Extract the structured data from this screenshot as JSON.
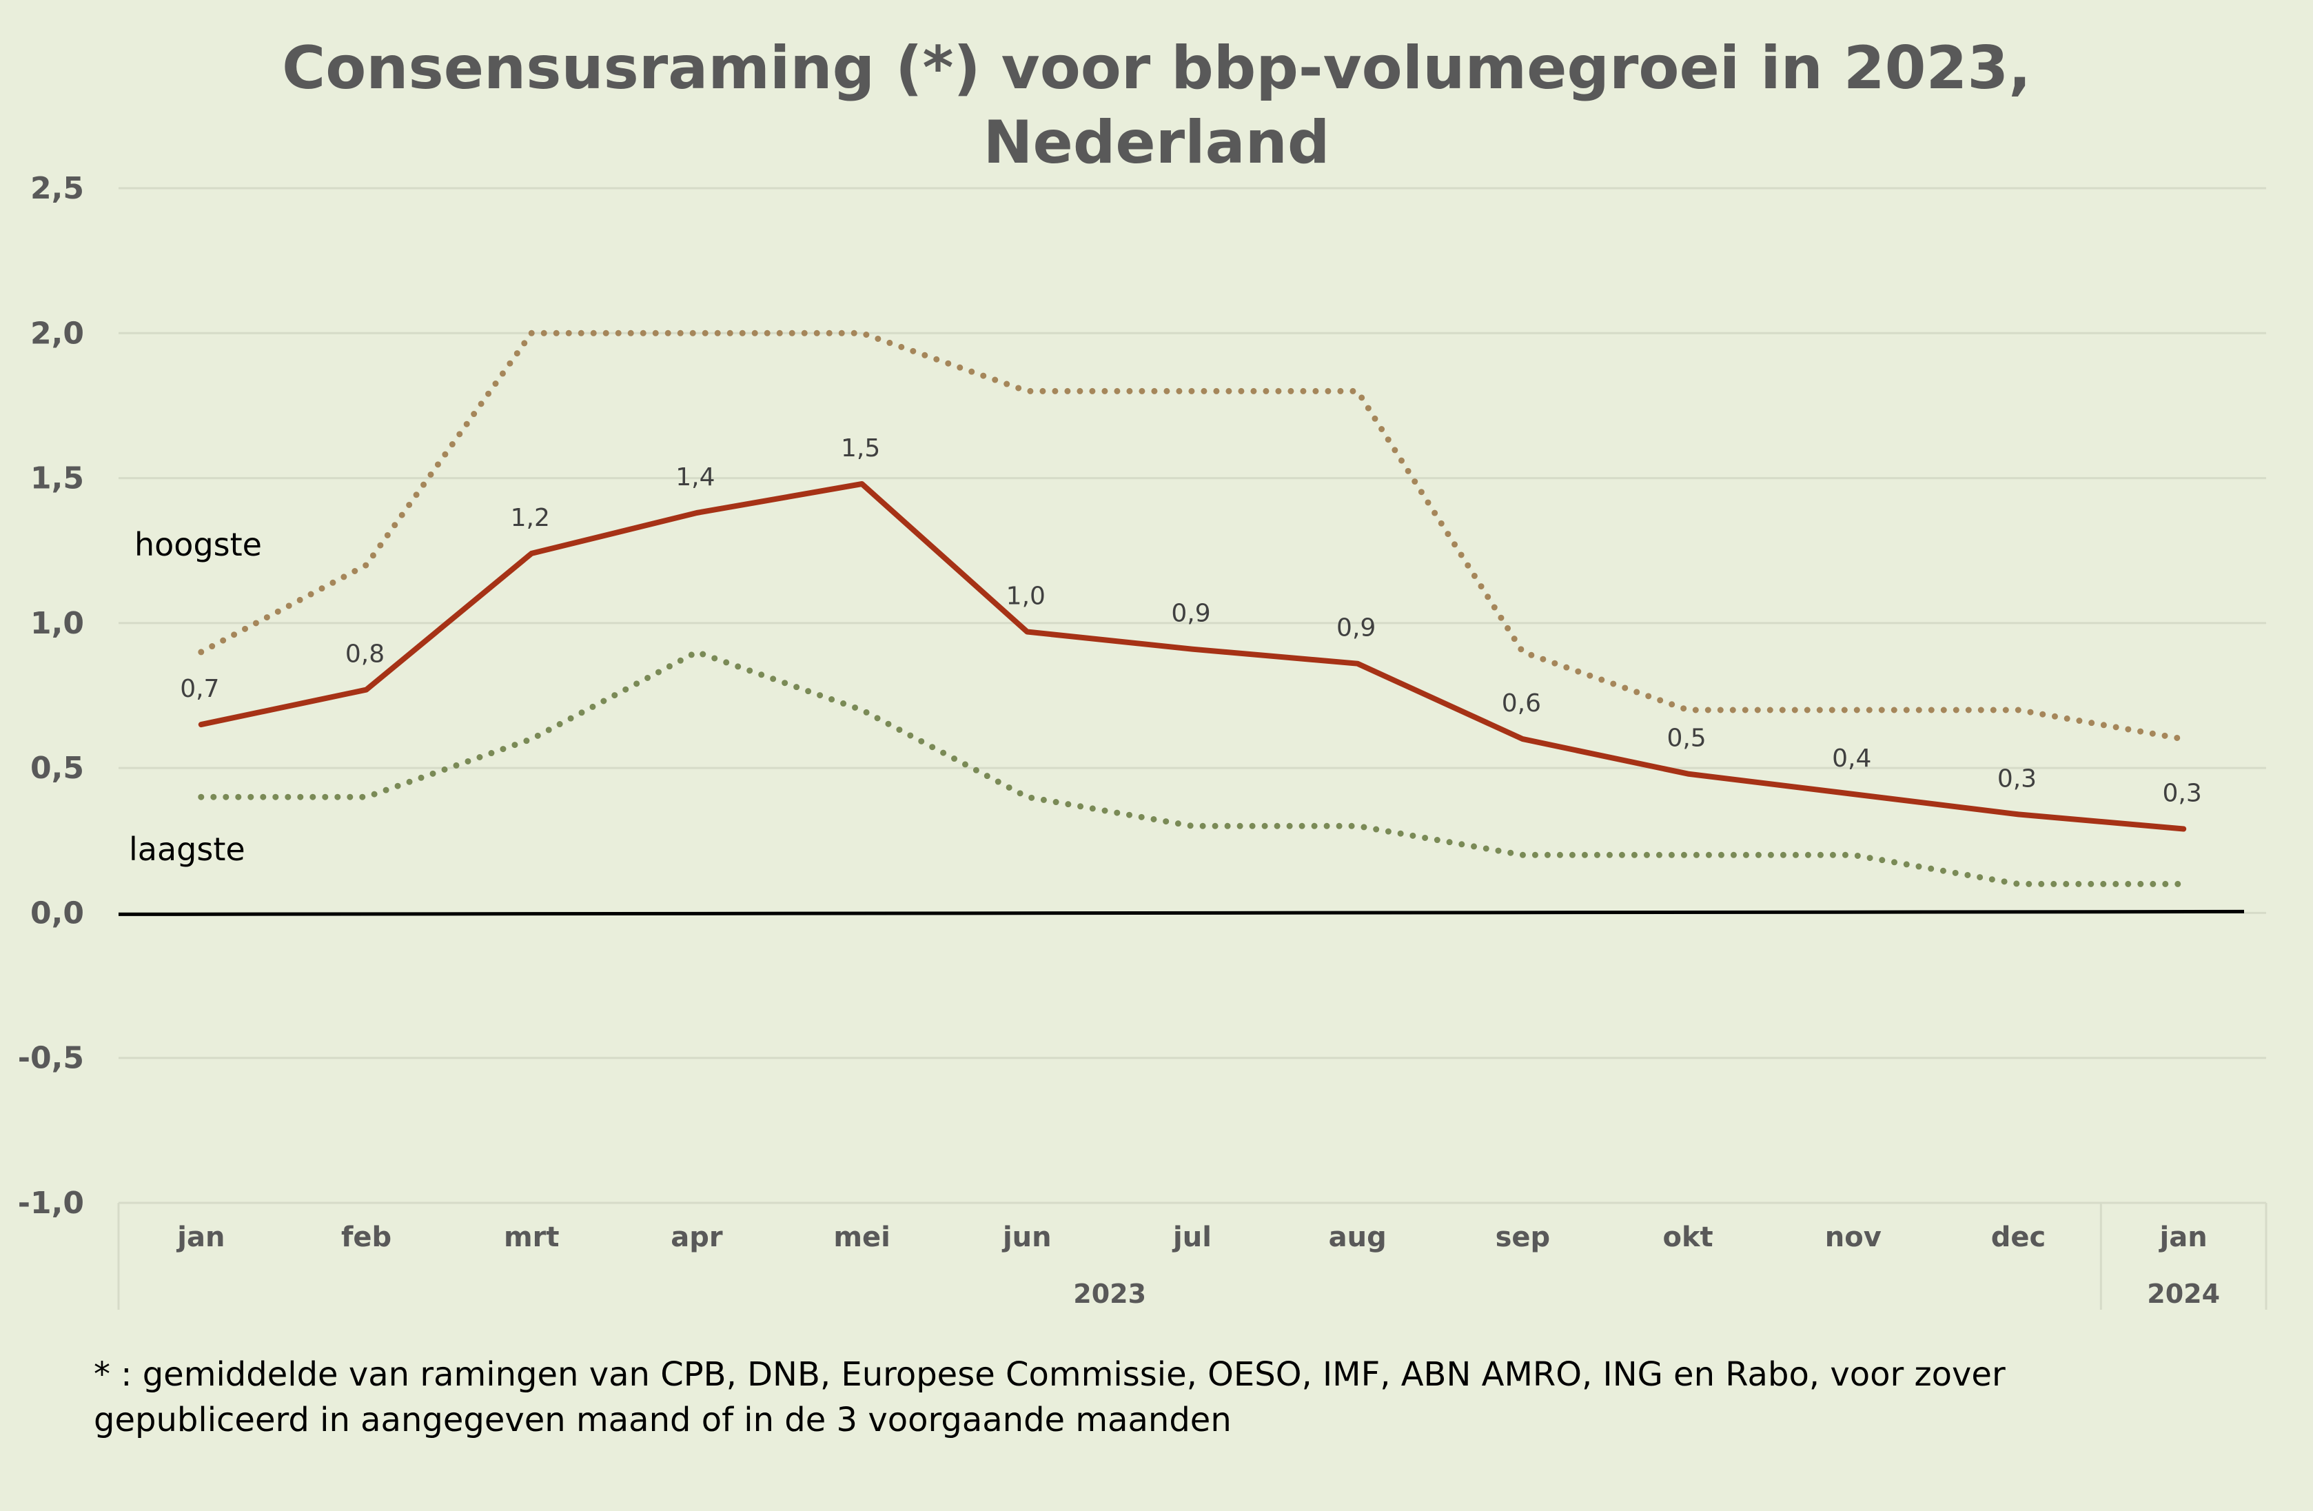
{
  "chart_data": {
    "type": "line",
    "title": [
      "Consensusraming (*) voor bbp-volumegroei in 2023,",
      "Nederland"
    ],
    "categories": [
      "jan",
      "feb",
      "mrt",
      "apr",
      "mei",
      "jun",
      "jul",
      "aug",
      "sep",
      "okt",
      "nov",
      "dec",
      "jan"
    ],
    "category_groups": [
      {
        "label": "2023",
        "from": 0,
        "to": 11
      },
      {
        "label": "2024",
        "from": 12,
        "to": 12
      }
    ],
    "y_ticks": [
      "2,5",
      "2,0",
      "1,5",
      "1,0",
      "0,5",
      "0,0",
      "-0,5",
      "-1,0"
    ],
    "ylim": [
      -1.0,
      2.5
    ],
    "grid": true,
    "series": [
      {
        "name": "hoogste",
        "style": "dotted",
        "color": "#a5865a",
        "values": [
          0.9,
          1.2,
          2.0,
          2.0,
          2.0,
          1.8,
          1.8,
          1.8,
          0.9,
          0.7,
          0.7,
          0.7,
          0.6
        ]
      },
      {
        "style": "solid",
        "color": "#a63216",
        "values": [
          0.65,
          0.77,
          1.24,
          1.38,
          1.48,
          0.97,
          0.91,
          0.86,
          0.6,
          0.48,
          0.41,
          0.34,
          0.29
        ],
        "data_labels": [
          "0,7",
          "0,8",
          "1,2",
          "1,4",
          "1,5",
          "1,0",
          "0,9",
          "0,9",
          "0,6",
          "0,5",
          "0,4",
          "0,3",
          "0,3"
        ]
      },
      {
        "name": "laagste",
        "style": "dotted",
        "color": "#7a8a56",
        "values": [
          0.4,
          0.4,
          0.6,
          0.9,
          0.7,
          0.4,
          0.3,
          0.3,
          0.2,
          0.2,
          0.2,
          0.1,
          0.1
        ]
      }
    ],
    "footnote": [
      "* : gemiddelde van ramingen van CPB, DNB, Europese Commissie, OESO, IMF, ABN AMRO, ING en Rabo, voor zover",
      "gepubliceerd in aangegeven maand of in de 3 voorgaande maanden"
    ]
  },
  "colors": {
    "background": "#e9eedb",
    "grid": "#d6dbc8",
    "axis": "#000000",
    "text": "#595959"
  }
}
